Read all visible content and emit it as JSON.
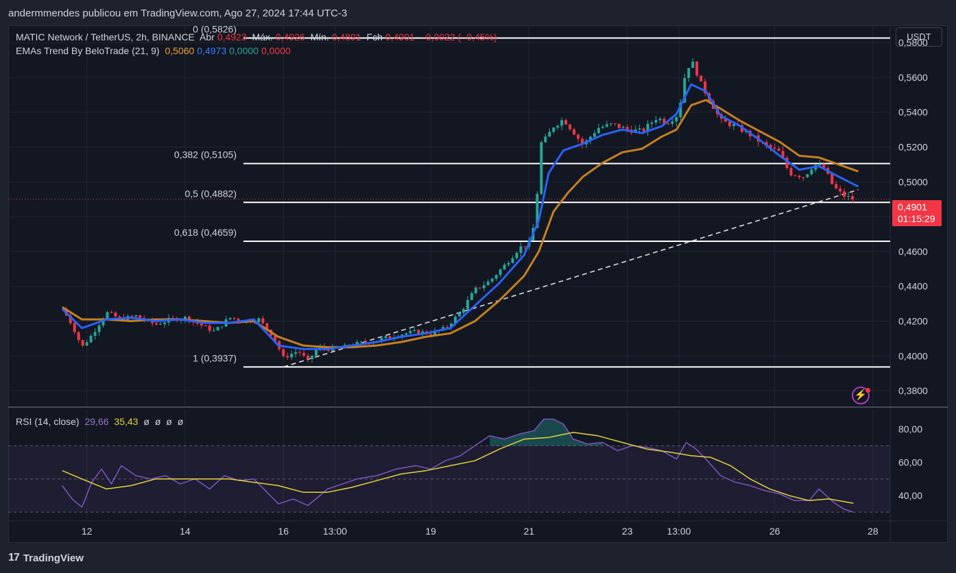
{
  "header": {
    "publisher": "andermmendes publicou em TradingView.com, Ago 27, 2024 17:44 UTC-3"
  },
  "legend": {
    "symbol": "MATIC Network / TetherUS, 2h, BINANCE",
    "open_label": "Abr",
    "open": "0,4923",
    "high_label": "Máx.",
    "high": "0,4926",
    "low_label": "Mín.",
    "low": "0,4891",
    "close_label": "Fch",
    "close": "0,4901",
    "change": "−0,0022 (−0,45%)",
    "ema_name": "EMAs Trend By BeloTrade (21, 9)",
    "ema_values": [
      "0,5060",
      "0,4973",
      "0,0000",
      "0,0000"
    ]
  },
  "rsi_legend": {
    "name": "RSI (14, close)",
    "rsi": "29,66",
    "ma": "35,43",
    "empty": [
      "ø",
      "ø",
      "ø",
      "ø"
    ]
  },
  "currency": "USDT",
  "last_price": {
    "price": "0,4901",
    "countdown": "01:15:29"
  },
  "footer": {
    "brand": "TradingView",
    "logo": "17"
  },
  "colors": {
    "up": "#26a69a",
    "down": "#f23645",
    "ema21": "#c68121",
    "ema9": "#2962ff",
    "rsi": "#7e57c2",
    "rsi_ma": "#e5d53a"
  },
  "chart_data": [
    {
      "type": "candlestick",
      "price_axis": [
        "0,3800",
        "0,4000",
        "0,4200",
        "0,4400",
        "0,4600",
        "0,4800",
        "0,5000",
        "0,5200",
        "0,5400",
        "0,5600",
        "0,5800"
      ],
      "ylim": [
        0.371,
        0.5895
      ],
      "time_axis": [
        {
          "label": "12",
          "x": 2.1
        },
        {
          "label": "14",
          "x": 4.1
        },
        {
          "label": "16",
          "x": 6.1
        },
        {
          "label": "13:00",
          "x": 7.15
        },
        {
          "label": "19",
          "x": 9.1
        },
        {
          "label": "21",
          "x": 11.1
        },
        {
          "label": "23",
          "x": 13.1
        },
        {
          "label": "13:00",
          "x": 14.15
        },
        {
          "label": "26",
          "x": 16.1
        },
        {
          "label": "28",
          "x": 18.1
        }
      ],
      "fibonacci": [
        {
          "label": "0 (0,5826)",
          "value": 0.5826
        },
        {
          "label": "0,382 (0,5105)",
          "value": 0.5105
        },
        {
          "label": "0,5 (0,4882)",
          "value": 0.4882
        },
        {
          "label": "0,618 (0,4659)",
          "value": 0.4659
        },
        {
          "label": "1 (0,3937)",
          "value": 0.3937
        }
      ],
      "trendline": [
        [
          6.1,
          0.3937
        ],
        [
          17.8,
          0.4955
        ]
      ],
      "last_price_line": 0.4901,
      "price_path": [
        [
          1.6,
          0.427
        ],
        [
          1.8,
          0.418
        ],
        [
          2.0,
          0.405
        ],
        [
          2.2,
          0.412
        ],
        [
          2.5,
          0.425
        ],
        [
          2.8,
          0.421
        ],
        [
          3.1,
          0.423
        ],
        [
          3.5,
          0.418
        ],
        [
          3.8,
          0.421
        ],
        [
          4.1,
          0.422
        ],
        [
          4.4,
          0.418
        ],
        [
          4.7,
          0.414
        ],
        [
          5.0,
          0.422
        ],
        [
          5.3,
          0.42
        ],
        [
          5.6,
          0.421
        ],
        [
          5.9,
          0.411
        ],
        [
          6.1,
          0.399
        ],
        [
          6.4,
          0.403
        ],
        [
          6.6,
          0.397
        ],
        [
          6.8,
          0.405
        ],
        [
          7.0,
          0.404
        ],
        [
          7.3,
          0.405
        ],
        [
          7.6,
          0.407
        ],
        [
          8.0,
          0.409
        ],
        [
          8.4,
          0.412
        ],
        [
          8.8,
          0.414
        ],
        [
          9.1,
          0.413
        ],
        [
          9.4,
          0.416
        ],
        [
          9.7,
          0.425
        ],
        [
          10.0,
          0.438
        ],
        [
          10.3,
          0.443
        ],
        [
          10.6,
          0.452
        ],
        [
          10.9,
          0.462
        ],
        [
          11.1,
          0.465
        ],
        [
          11.25,
          0.48
        ],
        [
          11.3,
          0.521
        ],
        [
          11.45,
          0.525
        ],
        [
          11.6,
          0.532
        ],
        [
          11.8,
          0.536
        ],
        [
          12.0,
          0.529
        ],
        [
          12.2,
          0.521
        ],
        [
          12.5,
          0.531
        ],
        [
          12.8,
          0.533
        ],
        [
          13.1,
          0.53
        ],
        [
          13.4,
          0.529
        ],
        [
          13.7,
          0.537
        ],
        [
          13.9,
          0.534
        ],
        [
          14.1,
          0.538
        ],
        [
          14.2,
          0.548
        ],
        [
          14.3,
          0.566
        ],
        [
          14.45,
          0.568
        ],
        [
          14.6,
          0.556
        ],
        [
          14.8,
          0.546
        ],
        [
          15.0,
          0.535
        ],
        [
          15.3,
          0.532
        ],
        [
          15.6,
          0.527
        ],
        [
          15.9,
          0.521
        ],
        [
          16.2,
          0.517
        ],
        [
          16.4,
          0.505
        ],
        [
          16.7,
          0.503
        ],
        [
          16.9,
          0.51
        ],
        [
          17.1,
          0.508
        ],
        [
          17.3,
          0.497
        ],
        [
          17.5,
          0.492
        ],
        [
          17.7,
          0.4901
        ]
      ],
      "ema21": [
        [
          1.6,
          0.428
        ],
        [
          2.0,
          0.421
        ],
        [
          2.5,
          0.421
        ],
        [
          3.0,
          0.42
        ],
        [
          3.5,
          0.421
        ],
        [
          4.0,
          0.421
        ],
        [
          4.5,
          0.42
        ],
        [
          5.0,
          0.419
        ],
        [
          5.5,
          0.42
        ],
        [
          6.0,
          0.411
        ],
        [
          6.5,
          0.406
        ],
        [
          7.0,
          0.405
        ],
        [
          7.5,
          0.405
        ],
        [
          8.0,
          0.406
        ],
        [
          8.5,
          0.408
        ],
        [
          9.0,
          0.411
        ],
        [
          9.5,
          0.413
        ],
        [
          10.0,
          0.42
        ],
        [
          10.5,
          0.432
        ],
        [
          11.0,
          0.446
        ],
        [
          11.3,
          0.46
        ],
        [
          11.6,
          0.483
        ],
        [
          11.9,
          0.494
        ],
        [
          12.2,
          0.503
        ],
        [
          12.6,
          0.511
        ],
        [
          13.0,
          0.517
        ],
        [
          13.4,
          0.519
        ],
        [
          13.8,
          0.526
        ],
        [
          14.1,
          0.53
        ],
        [
          14.4,
          0.544
        ],
        [
          14.7,
          0.547
        ],
        [
          15.0,
          0.542
        ],
        [
          15.4,
          0.535
        ],
        [
          15.8,
          0.529
        ],
        [
          16.2,
          0.523
        ],
        [
          16.6,
          0.515
        ],
        [
          17.0,
          0.514
        ],
        [
          17.4,
          0.51
        ],
        [
          17.8,
          0.506
        ]
      ],
      "ema9": [
        [
          1.6,
          0.427
        ],
        [
          2.0,
          0.416
        ],
        [
          2.5,
          0.421
        ],
        [
          3.0,
          0.422
        ],
        [
          3.5,
          0.42
        ],
        [
          4.0,
          0.421
        ],
        [
          4.5,
          0.419
        ],
        [
          5.0,
          0.419
        ],
        [
          5.5,
          0.421
        ],
        [
          6.0,
          0.406
        ],
        [
          6.5,
          0.404
        ],
        [
          7.0,
          0.404
        ],
        [
          7.5,
          0.406
        ],
        [
          8.0,
          0.408
        ],
        [
          8.5,
          0.411
        ],
        [
          9.0,
          0.413
        ],
        [
          9.5,
          0.416
        ],
        [
          10.0,
          0.429
        ],
        [
          10.5,
          0.442
        ],
        [
          11.0,
          0.458
        ],
        [
          11.3,
          0.478
        ],
        [
          11.5,
          0.505
        ],
        [
          11.8,
          0.518
        ],
        [
          12.2,
          0.522
        ],
        [
          12.6,
          0.527
        ],
        [
          13.0,
          0.53
        ],
        [
          13.4,
          0.528
        ],
        [
          13.8,
          0.532
        ],
        [
          14.1,
          0.539
        ],
        [
          14.4,
          0.556
        ],
        [
          14.7,
          0.552
        ],
        [
          15.0,
          0.538
        ],
        [
          15.4,
          0.532
        ],
        [
          15.8,
          0.524
        ],
        [
          16.2,
          0.515
        ],
        [
          16.6,
          0.507
        ],
        [
          17.0,
          0.509
        ],
        [
          17.4,
          0.503
        ],
        [
          17.8,
          0.4973
        ]
      ]
    },
    {
      "type": "line",
      "title": "RSI (14, close)",
      "y_axis": [
        "80,00",
        "60,00",
        "40,00"
      ],
      "ylim": [
        26,
        92
      ],
      "bands": [
        30,
        50,
        70
      ],
      "rsi": [
        [
          1.6,
          46
        ],
        [
          1.8,
          38
        ],
        [
          2.0,
          33
        ],
        [
          2.2,
          48
        ],
        [
          2.4,
          56
        ],
        [
          2.6,
          47
        ],
        [
          2.8,
          58
        ],
        [
          3.1,
          52
        ],
        [
          3.4,
          50
        ],
        [
          3.7,
          52
        ],
        [
          4.0,
          47
        ],
        [
          4.3,
          50
        ],
        [
          4.6,
          44
        ],
        [
          4.9,
          52
        ],
        [
          5.2,
          49
        ],
        [
          5.5,
          50
        ],
        [
          5.8,
          41
        ],
        [
          6.0,
          35
        ],
        [
          6.3,
          38
        ],
        [
          6.6,
          34
        ],
        [
          6.8,
          39
        ],
        [
          7.0,
          44
        ],
        [
          7.3,
          47
        ],
        [
          7.6,
          50
        ],
        [
          8.0,
          52
        ],
        [
          8.4,
          56
        ],
        [
          8.8,
          58
        ],
        [
          9.1,
          56
        ],
        [
          9.4,
          61
        ],
        [
          9.7,
          64
        ],
        [
          10.0,
          70
        ],
        [
          10.3,
          76
        ],
        [
          10.6,
          74
        ],
        [
          10.9,
          77
        ],
        [
          11.2,
          79
        ],
        [
          11.4,
          86
        ],
        [
          11.6,
          86
        ],
        [
          11.8,
          83
        ],
        [
          12.0,
          74
        ],
        [
          12.3,
          71
        ],
        [
          12.6,
          72
        ],
        [
          12.9,
          67
        ],
        [
          13.2,
          70
        ],
        [
          13.5,
          69
        ],
        [
          13.8,
          67
        ],
        [
          14.1,
          62
        ],
        [
          14.3,
          72
        ],
        [
          14.5,
          68
        ],
        [
          14.7,
          62
        ],
        [
          15.0,
          52
        ],
        [
          15.3,
          48
        ],
        [
          15.6,
          46
        ],
        [
          15.9,
          43
        ],
        [
          16.2,
          41
        ],
        [
          16.5,
          37
        ],
        [
          16.8,
          37
        ],
        [
          17.0,
          44
        ],
        [
          17.3,
          36
        ],
        [
          17.5,
          32
        ],
        [
          17.7,
          30
        ]
      ],
      "rsi_ma": [
        [
          1.6,
          55
        ],
        [
          2.0,
          50
        ],
        [
          2.5,
          44
        ],
        [
          3.0,
          46
        ],
        [
          3.5,
          50
        ],
        [
          4.0,
          50
        ],
        [
          4.5,
          50
        ],
        [
          5.0,
          50
        ],
        [
          5.5,
          48
        ],
        [
          6.0,
          46
        ],
        [
          6.5,
          42
        ],
        [
          7.0,
          42
        ],
        [
          7.5,
          45
        ],
        [
          8.0,
          49
        ],
        [
          8.5,
          53
        ],
        [
          9.0,
          55
        ],
        [
          9.5,
          58
        ],
        [
          10.0,
          61
        ],
        [
          10.5,
          68
        ],
        [
          11.0,
          74
        ],
        [
          11.5,
          75
        ],
        [
          12.0,
          78
        ],
        [
          12.5,
          76
        ],
        [
          13.0,
          72
        ],
        [
          13.5,
          68
        ],
        [
          14.0,
          66
        ],
        [
          14.4,
          64
        ],
        [
          14.8,
          63
        ],
        [
          15.2,
          58
        ],
        [
          15.6,
          50
        ],
        [
          16.0,
          44
        ],
        [
          16.4,
          40
        ],
        [
          16.8,
          37
        ],
        [
          17.2,
          38
        ],
        [
          17.7,
          35.4
        ]
      ]
    }
  ]
}
